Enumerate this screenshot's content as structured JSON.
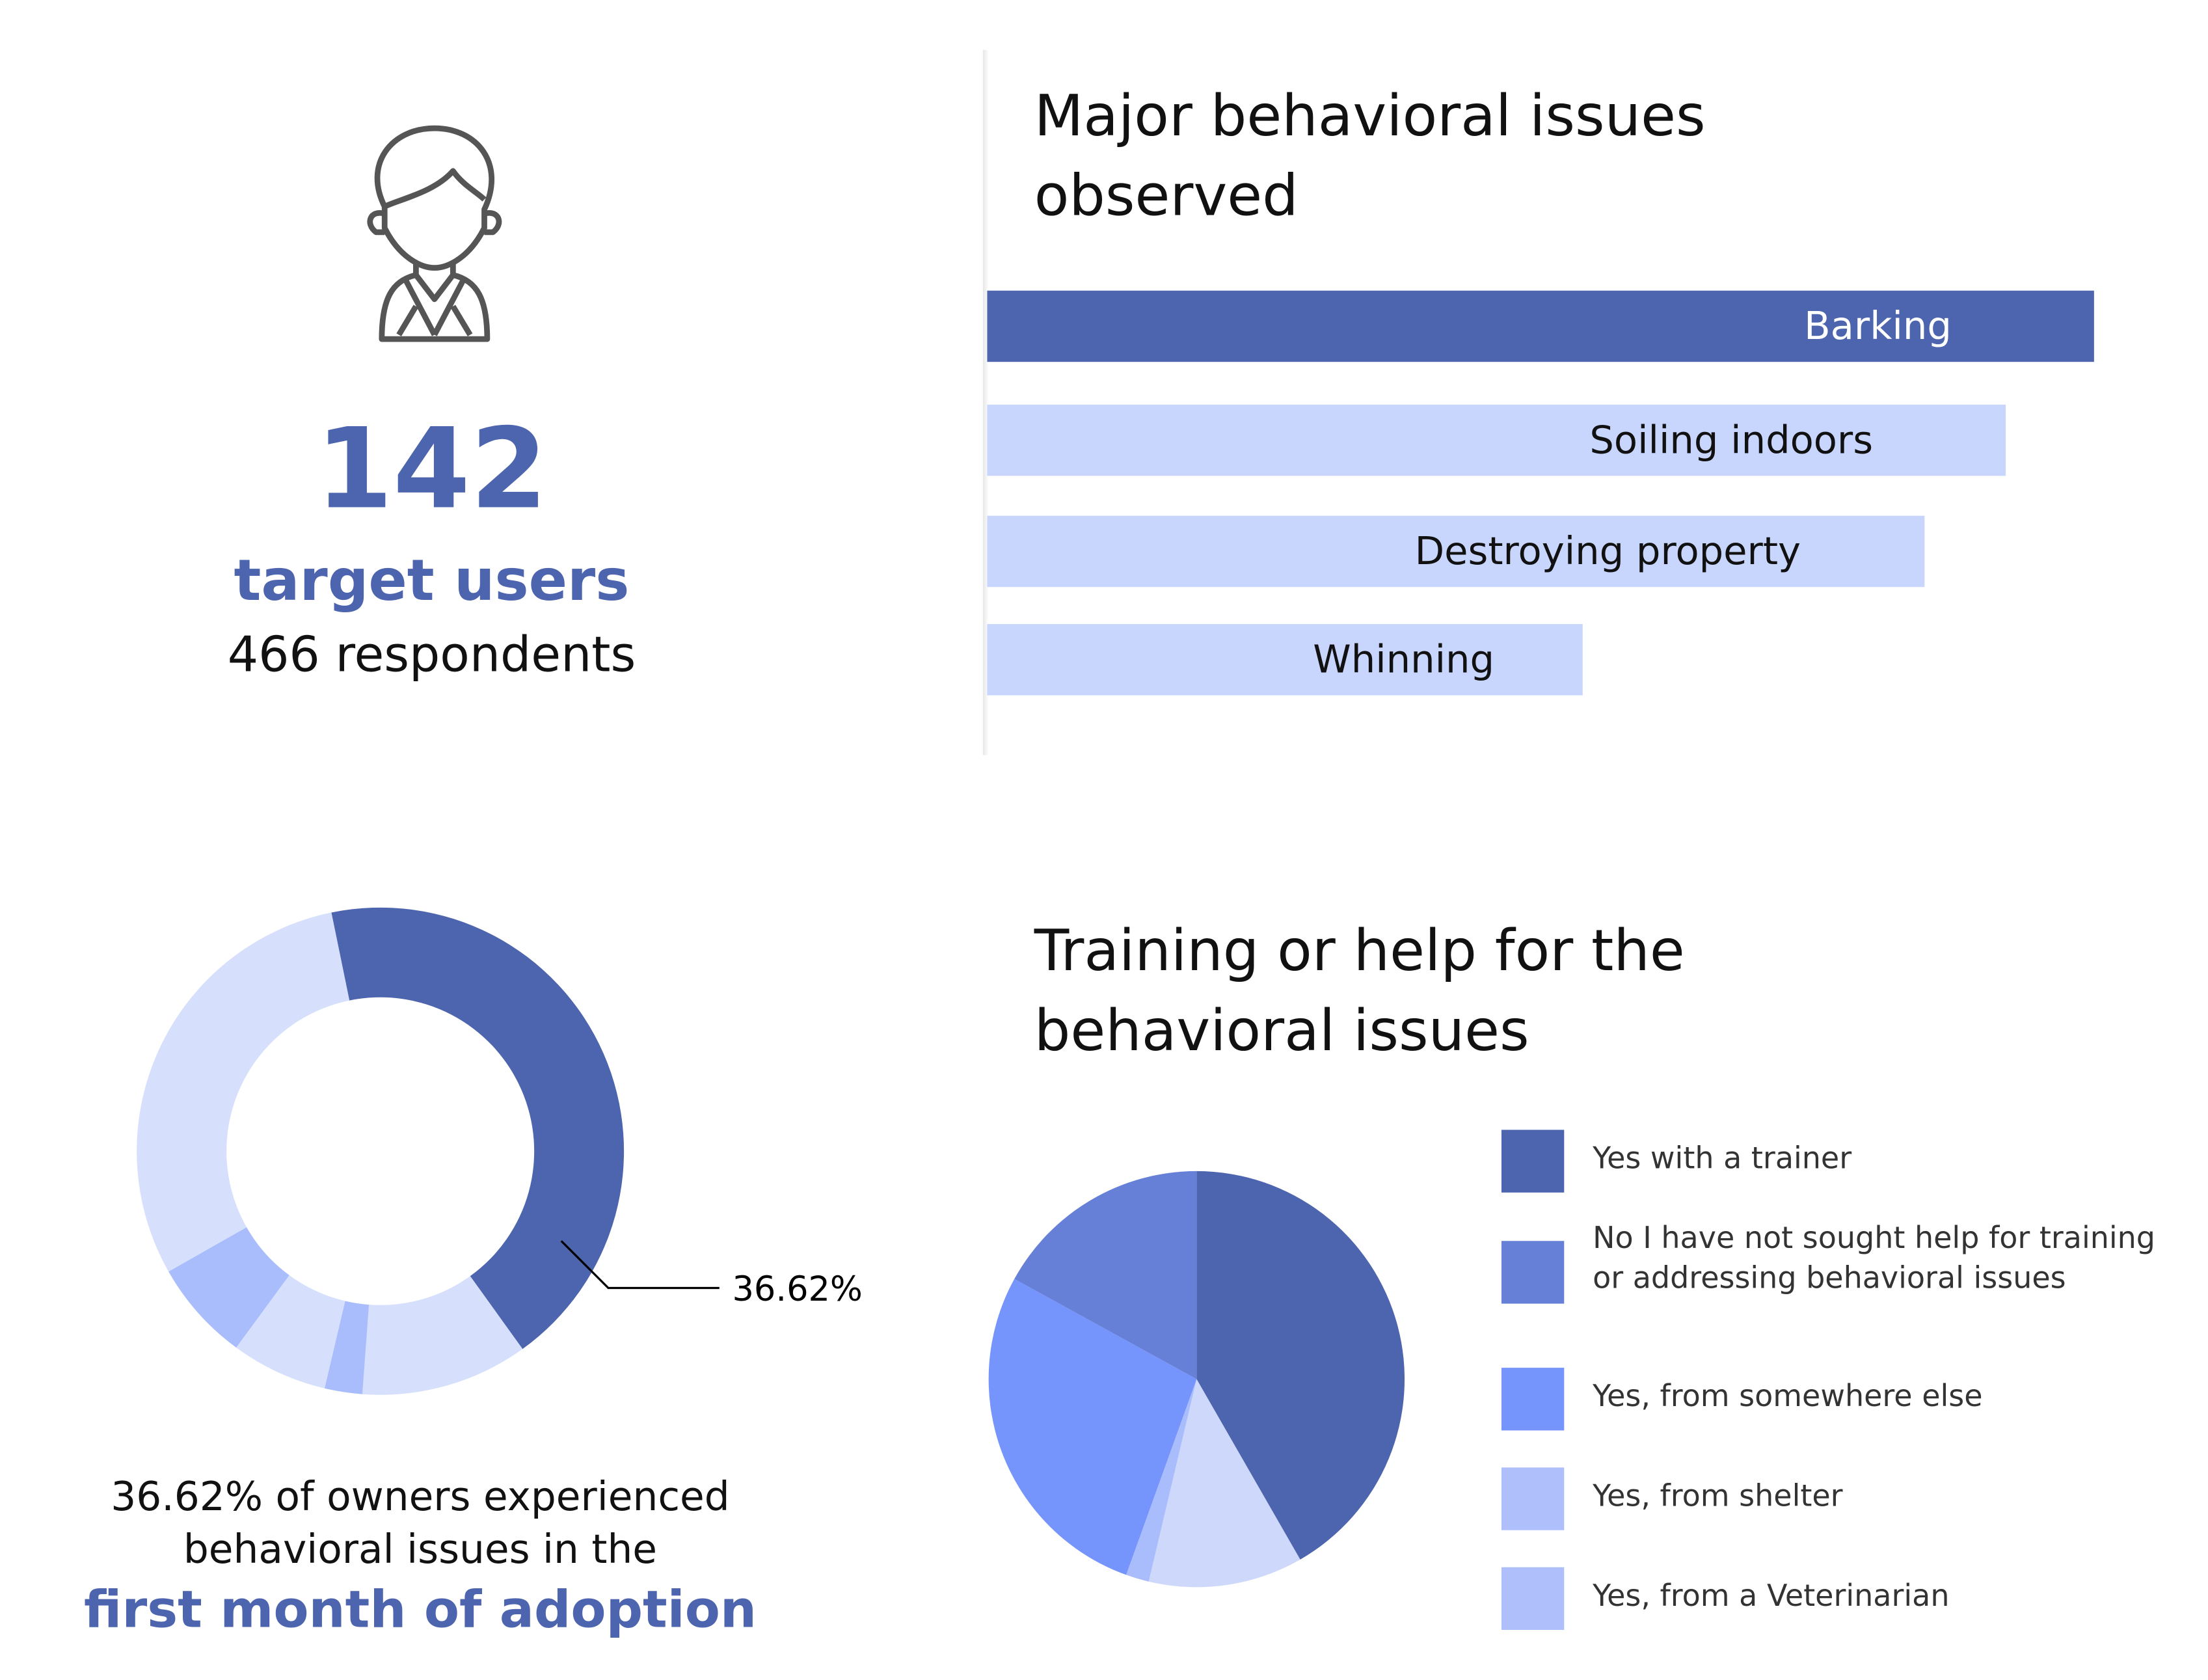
{
  "stats": {
    "count": "142",
    "count_label": "target users",
    "respondents": "466 respondents"
  },
  "colors": {
    "dark": "#4d64ae",
    "light_bar": "#c8d5fc"
  },
  "chart_data": [
    {
      "type": "bar",
      "orientation": "horizontal",
      "title": "Major behavioral issues observed",
      "title_lines": [
        "Major behavioral issues",
        "observed"
      ],
      "categories": [
        "Barking",
        "Soiling indoors",
        "Destroying property",
        "Whinning"
      ],
      "values": [
        100,
        92,
        84.7,
        53.8
      ],
      "colors": [
        "#4d64ae",
        "#c8d5fc",
        "#c8d5fc",
        "#c8d5fc"
      ]
    },
    {
      "type": "pie",
      "variant": "donut",
      "values": [
        43.3,
        11.1,
        2.5,
        6.4,
        6.7,
        30.0
      ],
      "colors": [
        "#4d64ae",
        "#d6e0fc",
        "#a9bdfc",
        "#d6e0fc",
        "#a9bdfc",
        "#d6e0fc"
      ],
      "annotation": "36.62%",
      "caption_lines": [
        "36.62% of owners experienced",
        "behavioral issues in the"
      ],
      "caption_highlight": "first month of adoption"
    },
    {
      "type": "pie",
      "title_lines": [
        "Training or help for the",
        "behavioral issues"
      ],
      "legend_position": "right",
      "slices": [
        {
          "name": "Yes with a trainer",
          "value": 41.7,
          "color": "#4d64ae"
        },
        {
          "name": "Yes, from shelter",
          "value": 12.0,
          "color": "#cdd8fb"
        },
        {
          "name": "Yes, from a Veterinarian",
          "value": 1.8,
          "color": "#a9bcfc"
        },
        {
          "name": "Yes, from somewhere else",
          "value": 27.5,
          "color": "#7594fc"
        },
        {
          "name": "No I have not sought help for training or addressing behavioral issues",
          "value": 17.0,
          "color": "#6680d8"
        }
      ],
      "legend": [
        {
          "name": "Yes with a trainer",
          "color": "#4d64ae"
        },
        {
          "name": "No I have not sought help for training or addressing behavioral issues",
          "color": "#6680d8"
        },
        {
          "name": "Yes, from somewhere else",
          "color": "#7594fc"
        },
        {
          "name": "Yes, from shelter",
          "color": "#aebffc"
        },
        {
          "name": "Yes, from a Veterinarian",
          "color": "#aebffc"
        }
      ]
    }
  ]
}
